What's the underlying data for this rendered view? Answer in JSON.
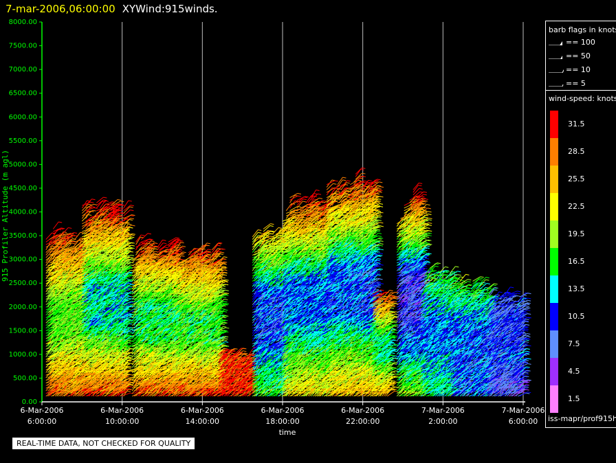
{
  "header": {
    "date": "7-mar-2006,06:00:00",
    "name": "XYWind:915winds."
  },
  "legend": {
    "barb_title": "barb flags in knots",
    "barbs": [
      {
        "label": "== 100",
        "kind": "flag100"
      },
      {
        "label": "== 50",
        "kind": "flag50"
      },
      {
        "label": "== 10",
        "kind": "barb10"
      },
      {
        "label": "== 5",
        "kind": "barb5"
      }
    ],
    "speed_title": "wind-speed: knots",
    "speed_scale": [
      {
        "label": "31.5",
        "color": "#ff0000"
      },
      {
        "label": "28.5",
        "color": "#ff7f00"
      },
      {
        "label": "25.5",
        "color": "#ffbf00"
      },
      {
        "label": "22.5",
        "color": "#ffff00"
      },
      {
        "label": "19.5",
        "color": "#a0ff20"
      },
      {
        "label": "16.5",
        "color": "#00ff00"
      },
      {
        "label": "13.5",
        "color": "#00ffff"
      },
      {
        "label": "10.5",
        "color": "#0000ff"
      },
      {
        "label": "7.5",
        "color": "#5f8fff"
      },
      {
        "label": "4.5",
        "color": "#9f2fff"
      },
      {
        "label": "1.5",
        "color": "#ff7fff"
      }
    ]
  },
  "source": "iss-mapr/prof915h",
  "note": "REAL-TIME DATA, NOT CHECKED FOR QUALITY",
  "chart_data": {
    "type": "scatter",
    "ylabel": "915 Profiler Altitude (m agl)",
    "xlabel": "time",
    "ylim": [
      0,
      8000
    ],
    "xlim_hours": [
      0,
      24
    ],
    "axis_color": "#00ff00",
    "y_ticks": [
      "0.00",
      "500.00",
      "1000.00",
      "1500.00",
      "2000.00",
      "2500.00",
      "3000.00",
      "3500.00",
      "4000.00",
      "4500.00",
      "5000.00",
      "5500.00",
      "6000.00",
      "6500.00",
      "7000.00",
      "7500.00",
      "8000.00"
    ],
    "x_ticks": [
      {
        "hour": 0,
        "line1": "6-Mar-2006",
        "line2": "6:00:00"
      },
      {
        "hour": 4,
        "line1": "6-Mar-2006",
        "line2": "10:00:00"
      },
      {
        "hour": 8,
        "line1": "6-Mar-2006",
        "line2": "14:00:00"
      },
      {
        "hour": 12,
        "line1": "6-Mar-2006",
        "line2": "18:00:00"
      },
      {
        "hour": 16,
        "line1": "6-Mar-2006",
        "line2": "22:00:00"
      },
      {
        "hour": 20,
        "line1": "7-Mar-2006",
        "line2": "2:00:00"
      },
      {
        "hour": 24,
        "line1": "7-Mar-2006",
        "line2": "6:00:00"
      }
    ],
    "grid": "vertical",
    "wind_profiles": [
      {
        "start": 0.2,
        "end": 2.0,
        "top": 3500,
        "low_speed": 30,
        "mid_speed": 18,
        "high_speed": 31
      },
      {
        "start": 2.0,
        "end": 4.1,
        "top": 4000,
        "low_speed": 31,
        "mid_speed": 14,
        "high_speed": 31
      },
      {
        "start": 4.5,
        "end": 6.5,
        "top": 3300,
        "low_speed": 31,
        "mid_speed": 16,
        "high_speed": 31
      },
      {
        "start": 6.5,
        "end": 8.8,
        "top": 3100,
        "low_speed": 31,
        "mid_speed": 17,
        "high_speed": 30
      },
      {
        "start": 8.8,
        "end": 10.4,
        "top": 1000,
        "low_speed": 31,
        "mid_speed": 31,
        "high_speed": 31
      },
      {
        "start": 10.5,
        "end": 12.0,
        "top": 3500,
        "low_speed": 18,
        "mid_speed": 10,
        "high_speed": 24
      },
      {
        "start": 12.0,
        "end": 14.2,
        "top": 4200,
        "low_speed": 24,
        "mid_speed": 12,
        "high_speed": 31
      },
      {
        "start": 14.2,
        "end": 16.5,
        "top": 4600,
        "low_speed": 26,
        "mid_speed": 11,
        "high_speed": 31
      },
      {
        "start": 16.5,
        "end": 17.3,
        "top": 2200,
        "low_speed": 28,
        "mid_speed": 15,
        "high_speed": 30
      },
      {
        "start": 17.7,
        "end": 18.9,
        "top": 4300,
        "low_speed": 20,
        "mid_speed": 8,
        "high_speed": 31
      },
      {
        "start": 18.9,
        "end": 20.4,
        "top": 2700,
        "low_speed": 16,
        "mid_speed": 12,
        "high_speed": 17
      },
      {
        "start": 20.4,
        "end": 22.2,
        "top": 2500,
        "low_speed": 11,
        "mid_speed": 11,
        "high_speed": 18
      },
      {
        "start": 22.2,
        "end": 23.9,
        "top": 2200,
        "low_speed": 7,
        "mid_speed": 10,
        "high_speed": 9
      }
    ]
  }
}
